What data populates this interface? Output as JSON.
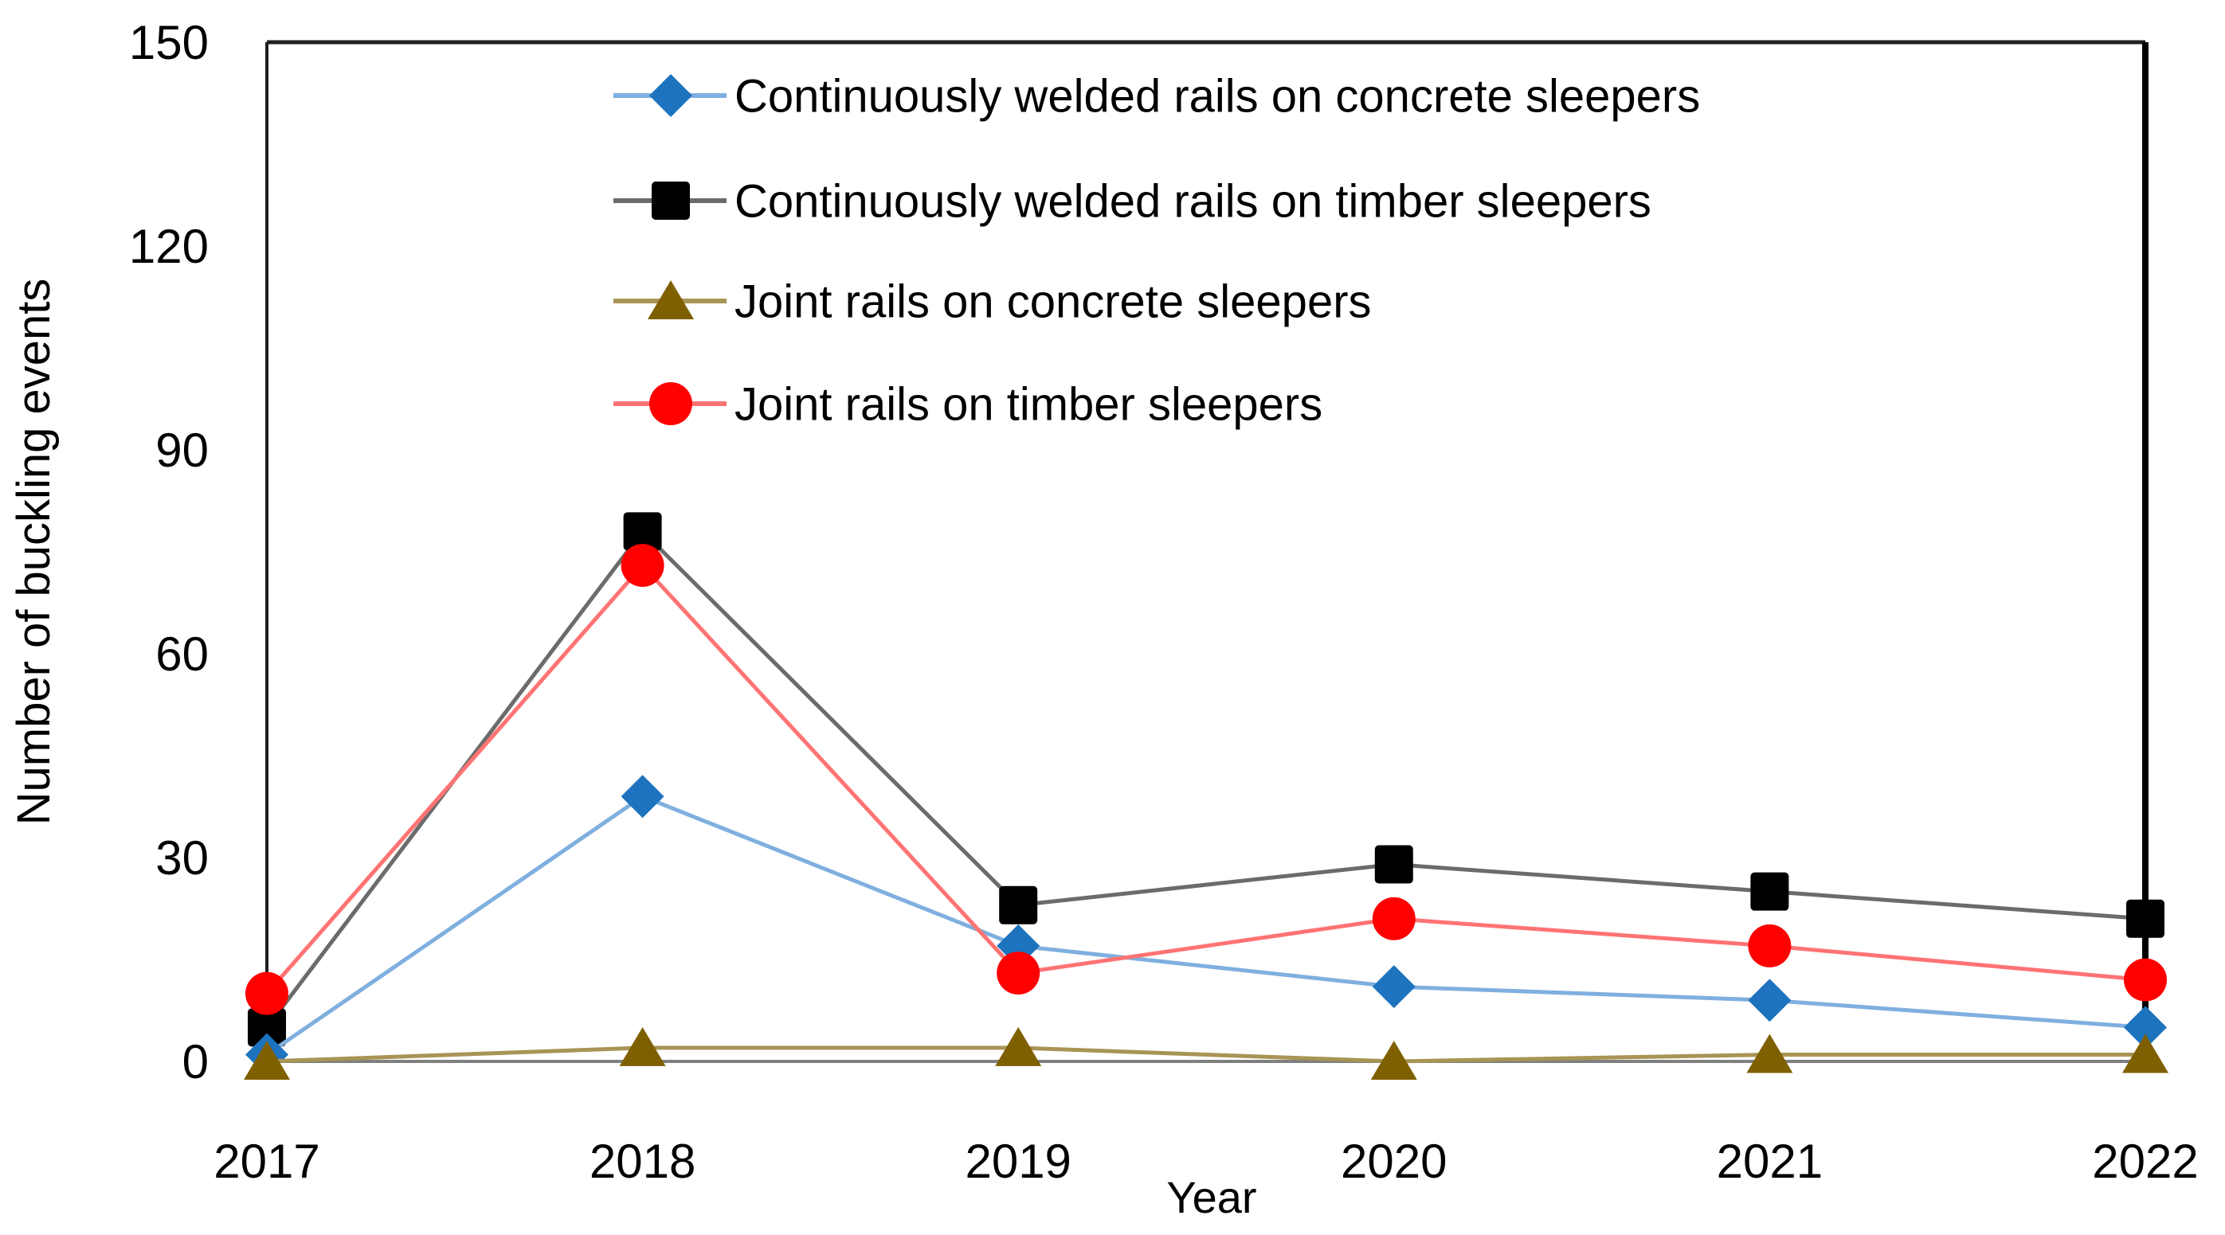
{
  "chart_data": {
    "type": "line",
    "x": [
      "2017",
      "2018",
      "2019",
      "2020",
      "2021",
      "2022"
    ],
    "xlabel": "Year",
    "ylabel": "Number of buckling events",
    "ylim": [
      0,
      150
    ],
    "yticks": [
      0,
      30,
      60,
      90,
      120,
      150
    ],
    "grid": false,
    "legend_position": "inside-top-left",
    "series": [
      {
        "name": "Continuously welded rails on concrete sleepers",
        "marker": "diamond",
        "marker_color": "#1E73BE",
        "line_color": "#7FAFDF",
        "values": [
          1,
          39,
          17,
          11,
          9,
          5
        ]
      },
      {
        "name": "Continuously welded rails on timber sleepers",
        "marker": "square",
        "marker_color": "#000000",
        "line_color": "#6B6B6B",
        "values": [
          5,
          78,
          23,
          29,
          25,
          21
        ]
      },
      {
        "name": "Joint rails on concrete sleepers",
        "marker": "triangle",
        "marker_color": "#7F6000",
        "line_color": "#A89455",
        "values": [
          0,
          2,
          2,
          0,
          1,
          1
        ]
      },
      {
        "name": "Joint rails on timber sleepers",
        "marker": "circle",
        "marker_color": "#FE0000",
        "line_color": "#FF7373",
        "values": [
          10,
          73,
          13,
          21,
          17,
          12
        ]
      }
    ]
  },
  "frame": {
    "border_color": "#1f1f1f",
    "right_border_color": "#000000",
    "bottom_axis_color": "#7f7f7f",
    "background": "#ffffff",
    "text_color": "#000000"
  }
}
